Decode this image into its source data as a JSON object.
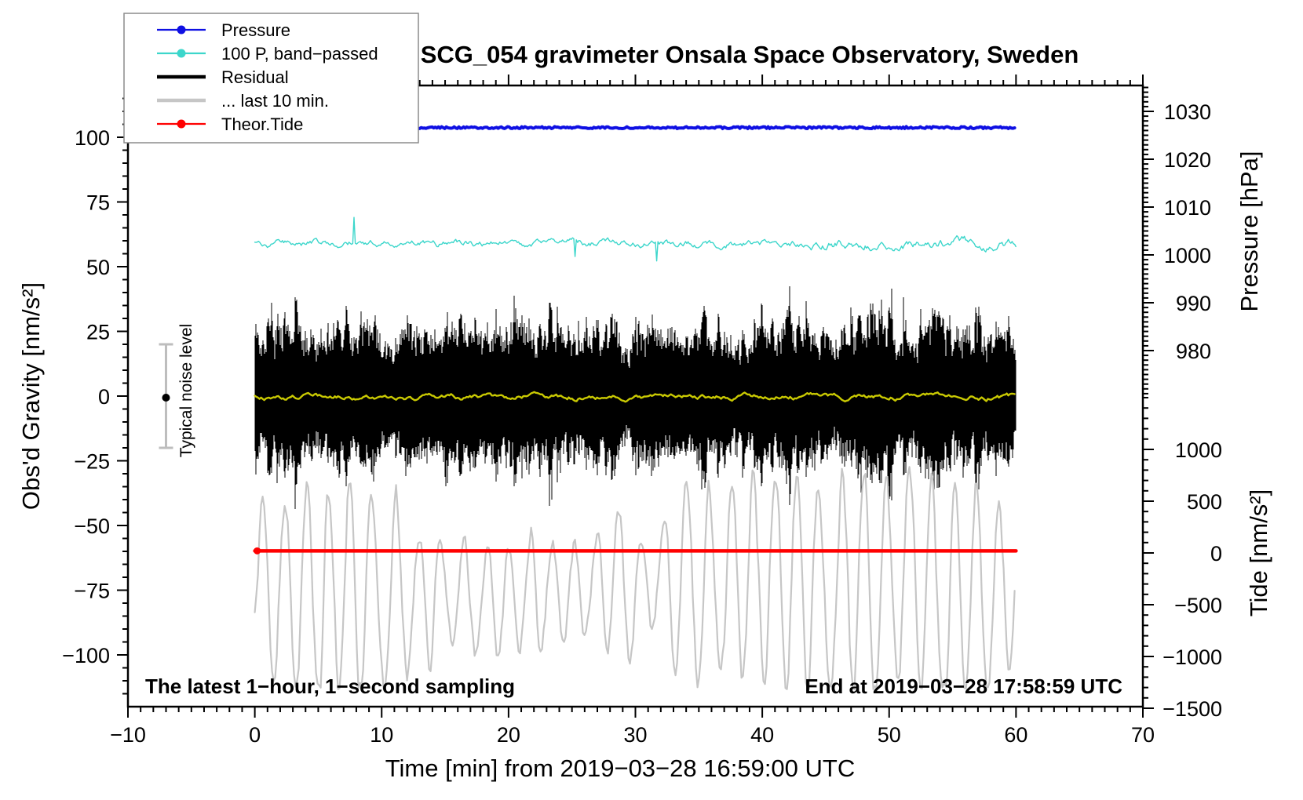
{
  "title": "SCG_054 gravimeter Onsala Space Observatory, Sweden",
  "annotations": {
    "sampling_note": "The latest 1−hour, 1−second sampling",
    "end_time_note": "End at 2019−03−28 17:58:59 UTC",
    "noise_label": "Typical noise level"
  },
  "chart_data": {
    "type": "line",
    "title": "SCG_054 gravimeter Onsala Space Observatory, Sweden",
    "seed": 54,
    "x": {
      "label": "Time [min] from 2019−03−28 16:59:00 UTC",
      "min": -10,
      "max": 70,
      "major_tick_step": 10,
      "minor_step": 1,
      "major_ticks": [
        -10,
        0,
        10,
        20,
        30,
        40,
        50,
        60,
        70
      ]
    },
    "axes": {
      "gravity": {
        "label": "Obs'd Gravity [nm/s²]",
        "side": "left",
        "min": -120,
        "max": 120,
        "minor_step": 5,
        "major_ticks": [
          -100,
          -75,
          -50,
          -25,
          0,
          25,
          50,
          75,
          100
        ]
      },
      "pressure": {
        "label": "Pressure [hPa]",
        "side": "right-top",
        "minor_step": 1,
        "tick_min": 971,
        "tick_max": 1035,
        "major_ticks": [
          1030,
          1020,
          1010,
          1000,
          990,
          980
        ]
      },
      "tide": {
        "label": "Tide [nm/s²]",
        "side": "right-bottom",
        "minor_step": 100,
        "tick_min": -1500,
        "tick_max": 1500,
        "major_ticks": [
          1000,
          500,
          0,
          -500,
          -1000,
          -1500
        ]
      }
    },
    "series": [
      {
        "id": "pressure",
        "name": "Pressure",
        "axis": "pressure",
        "t0": 0,
        "t1": 60,
        "value_hpa": 1026.6,
        "variation_hpa": 0.4,
        "color": "#0f10e3"
      },
      {
        "id": "bandpassed",
        "name": "100 P, band−passed",
        "axis": "gravity",
        "t0": 0,
        "t1": 60,
        "mean": 59,
        "typical_amplitude": 3,
        "spike_amplitude": 9,
        "color": "#3cd6cb"
      },
      {
        "id": "residual",
        "name": "Residual",
        "axis": "gravity",
        "t0": 0,
        "t1": 60,
        "mean": 0,
        "typical_amplitude": 22,
        "max_amplitude": 57,
        "color": "#000000"
      },
      {
        "id": "residual_smoothed",
        "name": "smoothed residual (yellow, unlabeled)",
        "axis": "gravity",
        "t0": 0,
        "t1": 60,
        "mean": 0,
        "typical_amplitude": 2,
        "color": "#c9c902"
      },
      {
        "id": "last10",
        "name": "... last 10 min.",
        "axis": "tide",
        "t0": 0,
        "t1": 60,
        "mean": -300,
        "typical_amplitude": 650,
        "period_min": 1,
        "color": "#c6c6c6"
      },
      {
        "id": "theor_tide",
        "name": "Theor.Tide",
        "axis": "tide",
        "t0": 0,
        "t1": 60,
        "value": 20,
        "color": "#ff0000"
      }
    ],
    "legend": [
      {
        "id": "pressure",
        "label": "Pressure",
        "color": "#0f10e3",
        "marker": true,
        "thick": false
      },
      {
        "id": "bandpassed",
        "label": "100 P, band−passed",
        "color": "#3cd6cb",
        "marker": true,
        "thick": false
      },
      {
        "id": "residual",
        "label": "Residual",
        "color": "#000000",
        "marker": false,
        "thick": true
      },
      {
        "id": "last10",
        "label": "... last 10 min.",
        "color": "#c6c6c6",
        "marker": false,
        "thick": true
      },
      {
        "id": "theor_tide",
        "label": "Theor.Tide",
        "color": "#ff0000",
        "marker": true,
        "thick": false
      }
    ],
    "noise_errorbar": {
      "x_min": -7,
      "center": 0,
      "half_range": 20,
      "label": "Typical noise level"
    }
  }
}
